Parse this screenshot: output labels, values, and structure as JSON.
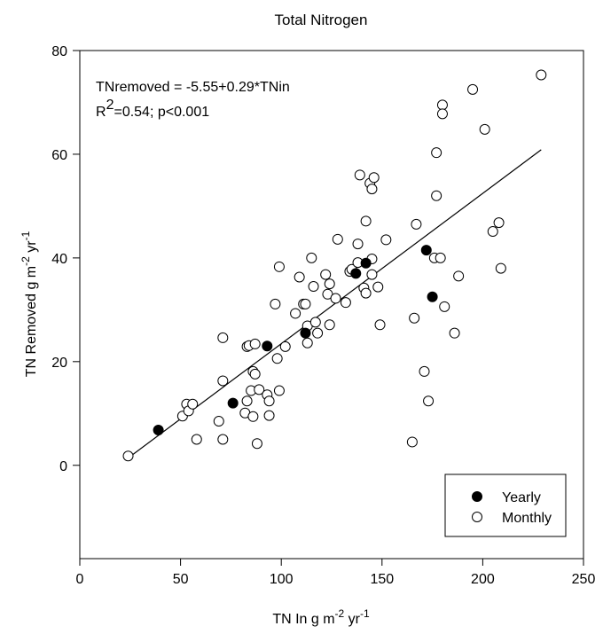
{
  "chart_data": {
    "type": "scatter",
    "title": "Total Nitrogen",
    "xlabel": {
      "base": "TN In g m",
      "exp1": "-2",
      "mid": " yr",
      "exp2": "-1"
    },
    "ylabel": {
      "base": "TN Removed g m",
      "exp1": "-2",
      "mid": " yr",
      "exp2": "-1"
    },
    "xlim": [
      0,
      250
    ],
    "ylim": [
      -18,
      80
    ],
    "x_ticks": [
      0,
      50,
      100,
      150,
      200,
      250
    ],
    "y_ticks": [
      0,
      20,
      40,
      60,
      80
    ],
    "grid": false,
    "legend_position": "bottom-right",
    "annotation": {
      "equation": "TNremoved = -5.55+0.29*TNin",
      "r2_prefix": "R",
      "r2_exp": "2",
      "r2_rest": "=0.54; p<0.001"
    },
    "regression_line": {
      "slope": 0.29,
      "intercept": -5.55,
      "x_range": [
        24,
        229
      ]
    },
    "series": [
      {
        "name": "Yearly",
        "marker": "filled-circle",
        "points": [
          [
            39,
            6.8
          ],
          [
            76,
            12
          ],
          [
            93,
            23
          ],
          [
            112,
            25.5
          ],
          [
            137,
            37
          ],
          [
            142,
            39
          ],
          [
            172,
            41.5
          ],
          [
            175,
            32.5
          ]
        ]
      },
      {
        "name": "Monthly",
        "marker": "open-circle",
        "points": [
          [
            24,
            1.8
          ],
          [
            51,
            9.5
          ],
          [
            53,
            11.8
          ],
          [
            54,
            10.5
          ],
          [
            56,
            11.8
          ],
          [
            58,
            5
          ],
          [
            69,
            8.5
          ],
          [
            71,
            5
          ],
          [
            71,
            16.3
          ],
          [
            71,
            24.6
          ],
          [
            82,
            10.1
          ],
          [
            83,
            12.4
          ],
          [
            83,
            22.9
          ],
          [
            84,
            23.1
          ],
          [
            85,
            14.4
          ],
          [
            86,
            9.4
          ],
          [
            86,
            18.1
          ],
          [
            87,
            23.4
          ],
          [
            87,
            17.6
          ],
          [
            88,
            4.2
          ],
          [
            89,
            14.6
          ],
          [
            93,
            13.6
          ],
          [
            94,
            12.4
          ],
          [
            94,
            9.6
          ],
          [
            97,
            31.1
          ],
          [
            98,
            20.6
          ],
          [
            99,
            14.4
          ],
          [
            99,
            38.3
          ],
          [
            102,
            22.9
          ],
          [
            107,
            29.3
          ],
          [
            109,
            36.3
          ],
          [
            111,
            31.1
          ],
          [
            112,
            31.1
          ],
          [
            113,
            26.9
          ],
          [
            113,
            23.6
          ],
          [
            115,
            40
          ],
          [
            116,
            34.5
          ],
          [
            117,
            27.6
          ],
          [
            118,
            25.5
          ],
          [
            122,
            36.8
          ],
          [
            123,
            33
          ],
          [
            124,
            35
          ],
          [
            124,
            27.1
          ],
          [
            127,
            32.2
          ],
          [
            128,
            43.6
          ],
          [
            132,
            31.4
          ],
          [
            134,
            37.4
          ],
          [
            135,
            37.8
          ],
          [
            138,
            39.1
          ],
          [
            138,
            42.7
          ],
          [
            139,
            56
          ],
          [
            141,
            34.2
          ],
          [
            142,
            33.2
          ],
          [
            142,
            47.1
          ],
          [
            144,
            54.4
          ],
          [
            145,
            53.3
          ],
          [
            145,
            39.8
          ],
          [
            145,
            36.8
          ],
          [
            146,
            55.5
          ],
          [
            148,
            34.4
          ],
          [
            149,
            27.1
          ],
          [
            152,
            43.5
          ],
          [
            165,
            4.5
          ],
          [
            166,
            28.4
          ],
          [
            167,
            46.5
          ],
          [
            171,
            18.1
          ],
          [
            173,
            12.4
          ],
          [
            176,
            40
          ],
          [
            177,
            52
          ],
          [
            177,
            60.3
          ],
          [
            179,
            40
          ],
          [
            180,
            69.5
          ],
          [
            180,
            67.8
          ],
          [
            181,
            30.6
          ],
          [
            186,
            25.5
          ],
          [
            188,
            36.5
          ],
          [
            195,
            72.5
          ],
          [
            201,
            64.8
          ],
          [
            205,
            45.1
          ],
          [
            208,
            46.8
          ],
          [
            209,
            38
          ],
          [
            229,
            75.3
          ]
        ]
      }
    ]
  }
}
